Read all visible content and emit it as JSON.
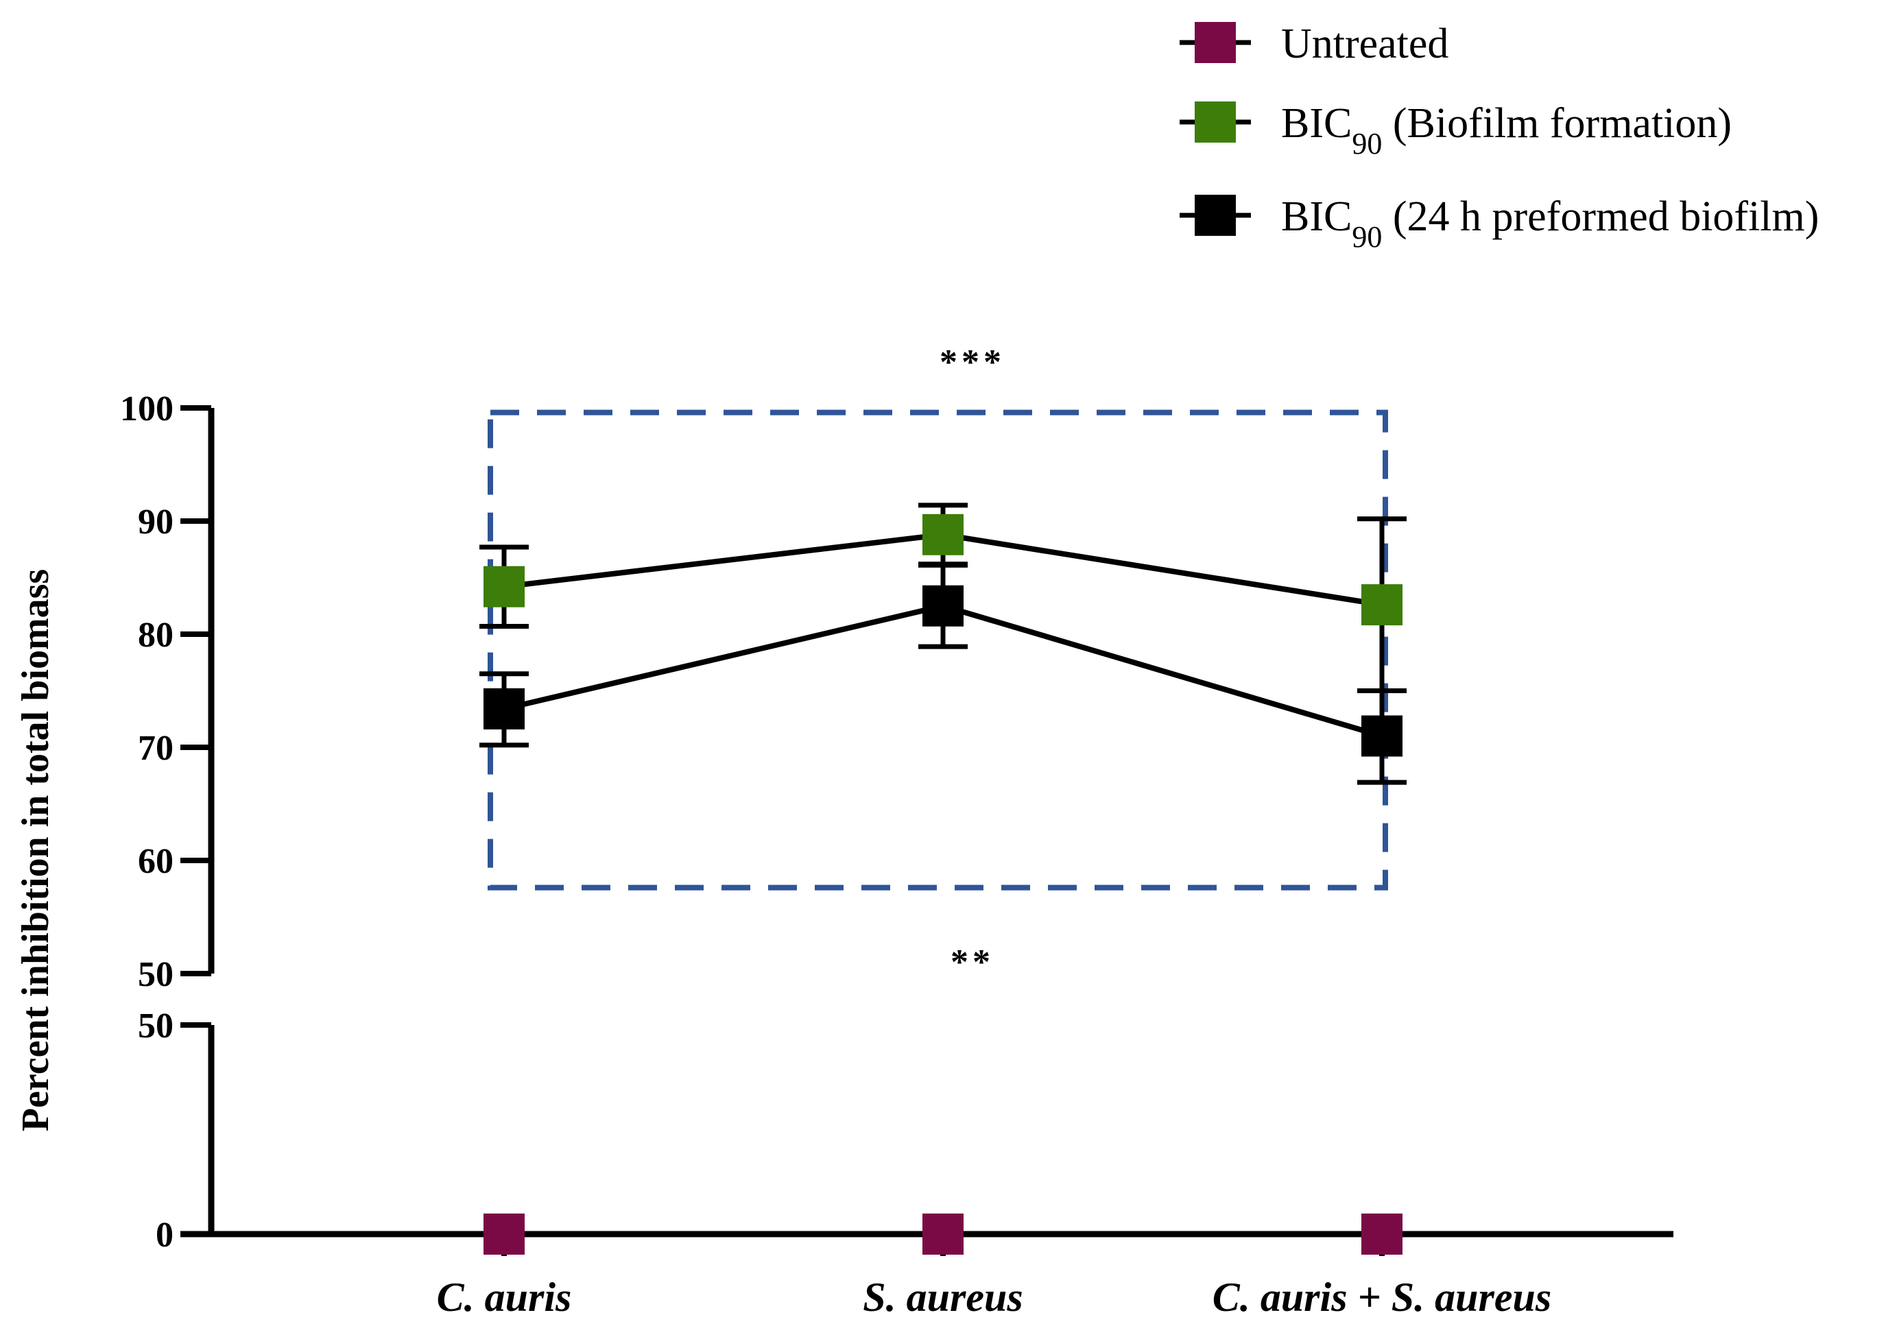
{
  "chart_data": {
    "type": "line",
    "ylabel": "Percent inhibition in total biomass",
    "xlabel": "",
    "categories": [
      "C. auris",
      "S. aureus",
      "C. auris + S. aureus"
    ],
    "y_axis_break": {
      "lower_segment": [
        0,
        50
      ],
      "upper_segment": [
        50,
        100
      ]
    },
    "y_ticks_lower": [
      "0",
      "50"
    ],
    "y_ticks_upper": [
      "50",
      "60",
      "70",
      "80",
      "90",
      "100"
    ],
    "legend_position": "top-right",
    "series": [
      {
        "name": "Untreated",
        "legend_main": "Untreated",
        "legend_sub": "",
        "legend_suffix": "",
        "color": "#7a0a45",
        "values": [
          0,
          0,
          0
        ],
        "err_low": [
          0,
          0,
          0
        ],
        "err_high": [
          0,
          0,
          0
        ],
        "connected": false
      },
      {
        "name": "BIC90 (Biofilm formation)",
        "legend_main": "BIC",
        "legend_sub": "90",
        "legend_suffix": " (Biofilm formation)",
        "color": "#3d7d0a",
        "values": [
          84.2,
          88.8,
          82.6
        ],
        "err_low": [
          80.7,
          86.2,
          75.0
        ],
        "err_high": [
          87.7,
          91.4,
          90.2
        ],
        "connected": true
      },
      {
        "name": "BIC90 (24 h preformed biofilm)",
        "legend_main": "BIC",
        "legend_sub": "90",
        "legend_suffix": " (24 h preformed biofilm)",
        "color": "#000000",
        "values": [
          73.4,
          82.5,
          71.0
        ],
        "err_low": [
          70.2,
          78.9,
          66.9
        ],
        "err_high": [
          76.5,
          86.1,
          75.0
        ],
        "connected": true
      }
    ],
    "annotations": {
      "top_significance": "***",
      "bottom_significance": "**",
      "box_color": "#2f5597",
      "box_range_y": [
        57.6,
        99.6
      ]
    }
  }
}
